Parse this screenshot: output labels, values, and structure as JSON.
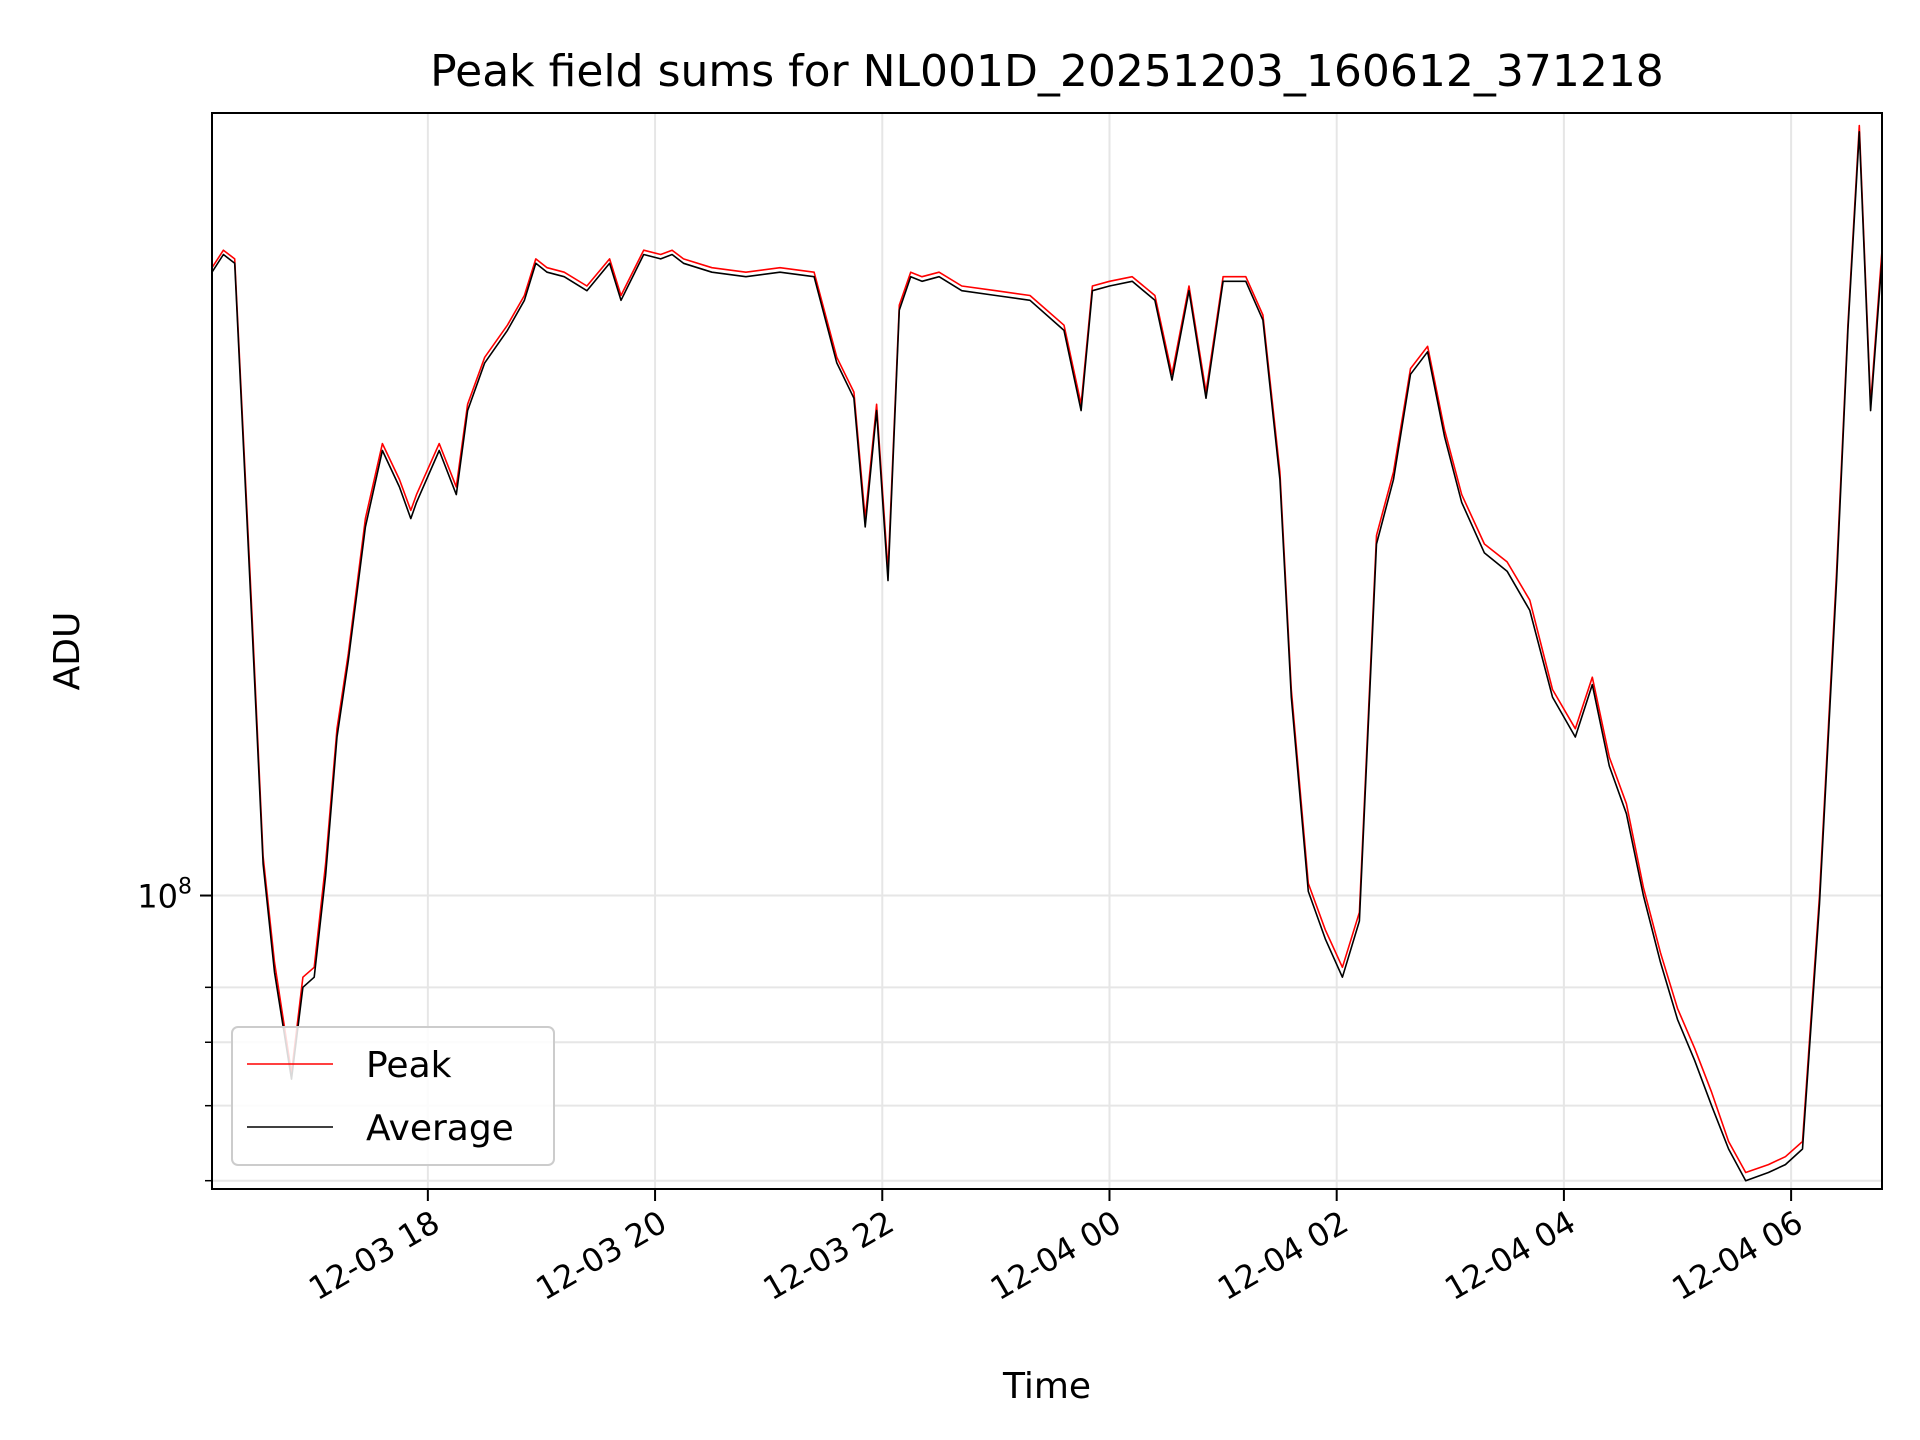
{
  "chart_data": {
    "type": "line",
    "title": "Peak field sums for NL001D_20251203_160612_371218",
    "xlabel": "Time",
    "ylabel": "ADU",
    "y_scale": "log",
    "grid": true,
    "legend_position": "lower-left",
    "x_tick_labels": [
      "12-03 18",
      "12-03 20",
      "12-03 22",
      "12-04 00",
      "12-04 02",
      "12-04 04",
      "12-04 06"
    ],
    "x_tick_hours": [
      18,
      20,
      22,
      24,
      26,
      28,
      30
    ],
    "xlim_hours": [
      16.1,
      30.8
    ],
    "y_tick_major": [
      {
        "value": 100000000,
        "base": "10",
        "exp": "8"
      }
    ],
    "y_tick_minor": [
      50000000,
      60000000,
      70000000,
      80000000
    ],
    "ylim": [
      49000000,
      670000000
    ],
    "series": [
      {
        "name": "Peak",
        "color": "#ff0000",
        "x_hours": [
          16.1,
          16.2,
          16.3,
          16.45,
          16.55,
          16.65,
          16.8,
          16.9,
          17.0,
          17.1,
          17.2,
          17.3,
          17.45,
          17.6,
          17.75,
          17.85,
          17.9,
          18.1,
          18.25,
          18.35,
          18.5,
          18.7,
          18.85,
          18.95,
          19.05,
          19.2,
          19.4,
          19.6,
          19.7,
          19.9,
          20.05,
          20.15,
          20.25,
          20.5,
          20.8,
          21.1,
          21.4,
          21.6,
          21.75,
          21.85,
          21.95,
          22.05,
          22.15,
          22.25,
          22.35,
          22.5,
          22.7,
          23.0,
          23.3,
          23.6,
          23.75,
          23.85,
          24.0,
          24.2,
          24.4,
          24.55,
          24.7,
          24.85,
          25.0,
          25.2,
          25.35,
          25.5,
          25.6,
          25.75,
          25.9,
          26.05,
          26.2,
          26.35,
          26.5,
          26.65,
          26.8,
          26.95,
          27.1,
          27.3,
          27.5,
          27.7,
          27.9,
          28.1,
          28.25,
          28.4,
          28.55,
          28.7,
          28.85,
          29.0,
          29.15,
          29.3,
          29.45,
          29.6,
          29.8,
          29.95,
          30.1,
          30.25,
          30.4,
          30.5,
          30.6,
          30.7,
          30.8
        ],
        "y": [
          460000000,
          480000000,
          470000000,
          200000000,
          110000000,
          85000000,
          65000000,
          82000000,
          84000000,
          108000000,
          150000000,
          180000000,
          250000000,
          300000000,
          275000000,
          255000000,
          265000000,
          300000000,
          270000000,
          330000000,
          370000000,
          400000000,
          430000000,
          470000000,
          460000000,
          455000000,
          440000000,
          470000000,
          430000000,
          480000000,
          475000000,
          480000000,
          470000000,
          460000000,
          455000000,
          460000000,
          455000000,
          370000000,
          340000000,
          250000000,
          330000000,
          220000000,
          420000000,
          455000000,
          450000000,
          455000000,
          440000000,
          435000000,
          430000000,
          400000000,
          330000000,
          440000000,
          445000000,
          450000000,
          430000000,
          355000000,
          440000000,
          340000000,
          450000000,
          450000000,
          410000000,
          280000000,
          165000000,
          103000000,
          92000000,
          84000000,
          96000000,
          240000000,
          280000000,
          360000000,
          380000000,
          310000000,
          265000000,
          235000000,
          225000000,
          205000000,
          165000000,
          150000000,
          170000000,
          140000000,
          125000000,
          102000000,
          87000000,
          76000000,
          69000000,
          62000000,
          55000000,
          51000000,
          52000000,
          53000000,
          55000000,
          100000000,
          220000000,
          400000000,
          650000000,
          330000000,
          480000000
        ]
      },
      {
        "name": "Average",
        "color": "#000000",
        "x_hours": [
          16.1,
          16.2,
          16.3,
          16.45,
          16.55,
          16.65,
          16.8,
          16.9,
          17.0,
          17.1,
          17.2,
          17.3,
          17.45,
          17.6,
          17.75,
          17.85,
          17.9,
          18.1,
          18.25,
          18.35,
          18.5,
          18.7,
          18.85,
          18.95,
          19.05,
          19.2,
          19.4,
          19.6,
          19.7,
          19.9,
          20.05,
          20.15,
          20.25,
          20.5,
          20.8,
          21.1,
          21.4,
          21.6,
          21.75,
          21.85,
          21.95,
          22.05,
          22.15,
          22.25,
          22.35,
          22.5,
          22.7,
          23.0,
          23.3,
          23.6,
          23.75,
          23.85,
          24.0,
          24.2,
          24.4,
          24.55,
          24.7,
          24.85,
          25.0,
          25.2,
          25.35,
          25.5,
          25.6,
          25.75,
          25.9,
          26.05,
          26.2,
          26.35,
          26.5,
          26.65,
          26.8,
          26.95,
          27.1,
          27.3,
          27.5,
          27.7,
          27.9,
          28.1,
          28.25,
          28.4,
          28.55,
          28.7,
          28.85,
          29.0,
          29.15,
          29.3,
          29.45,
          29.6,
          29.8,
          29.95,
          30.1,
          30.25,
          30.4,
          30.5,
          30.6,
          30.7,
          30.8
        ],
        "y": [
          455000000,
          475000000,
          465000000,
          195000000,
          108000000,
          83000000,
          64000000,
          80000000,
          82000000,
          105000000,
          147000000,
          177000000,
          245000000,
          295000000,
          270000000,
          250000000,
          260000000,
          295000000,
          265000000,
          325000000,
          365000000,
          395000000,
          425000000,
          465000000,
          455000000,
          450000000,
          435000000,
          465000000,
          425000000,
          475000000,
          470000000,
          475000000,
          465000000,
          455000000,
          450000000,
          455000000,
          450000000,
          365000000,
          335000000,
          245000000,
          325000000,
          215000000,
          415000000,
          450000000,
          445000000,
          450000000,
          435000000,
          430000000,
          425000000,
          395000000,
          325000000,
          435000000,
          440000000,
          445000000,
          425000000,
          350000000,
          435000000,
          335000000,
          445000000,
          445000000,
          405000000,
          275000000,
          162000000,
          101000000,
          90000000,
          82000000,
          94000000,
          235000000,
          275000000,
          355000000,
          375000000,
          305000000,
          260000000,
          230000000,
          220000000,
          200000000,
          162000000,
          147000000,
          167000000,
          137000000,
          122000000,
          100000000,
          85000000,
          74000000,
          67000000,
          60000000,
          54000000,
          50000000,
          51000000,
          52000000,
          54000000,
          98000000,
          215000000,
          395000000,
          640000000,
          325000000,
          470000000
        ]
      }
    ]
  }
}
